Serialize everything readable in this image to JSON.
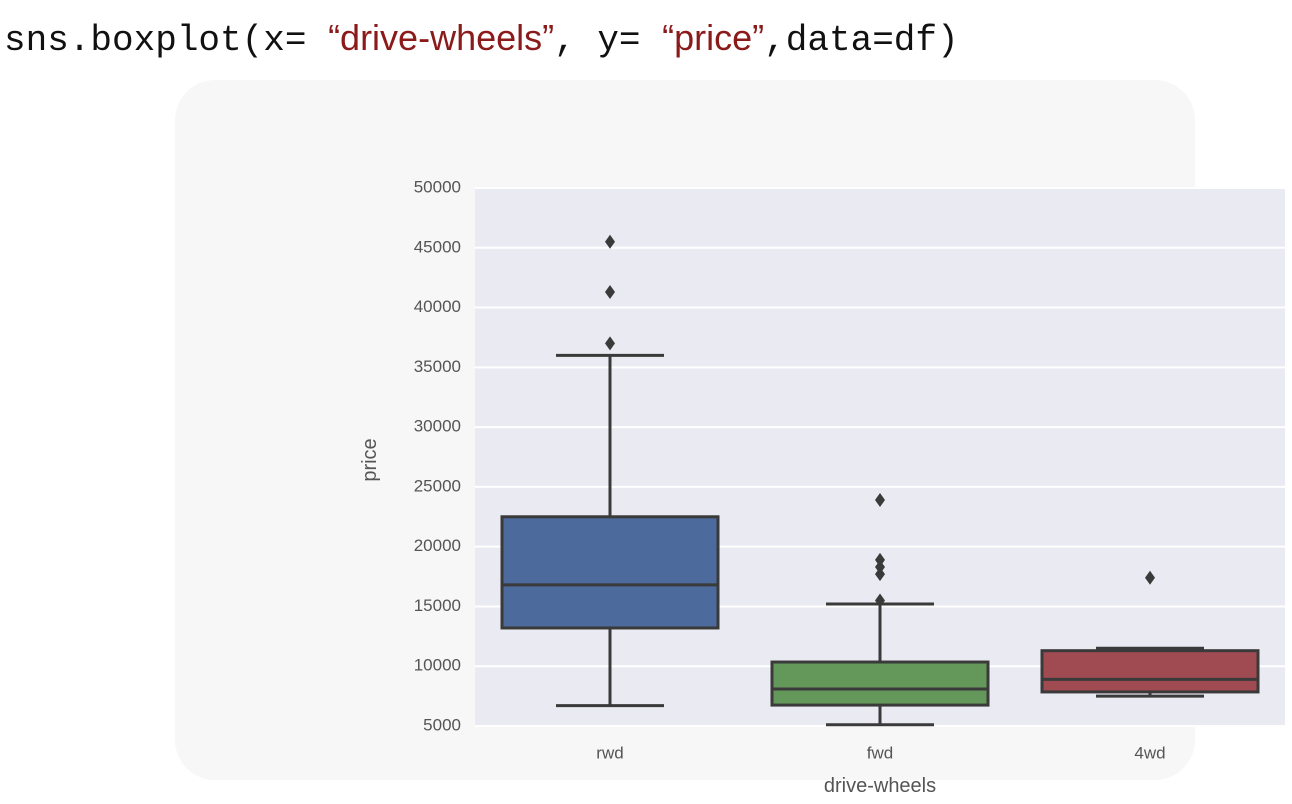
{
  "code_segments": [
    {
      "text": "sns.boxplot(x= ",
      "color": "#111111"
    },
    {
      "text": "“drive-wheels”",
      "color": "#8b1a1a"
    },
    {
      "text": ", y= ",
      "color": "#111111"
    },
    {
      "text": "“price”",
      "color": "#8b1a1a"
    },
    {
      "text": ",data=df)",
      "color": "#111111"
    }
  ],
  "chart_data": {
    "type": "box",
    "x_label": "drive-wheels",
    "y_label": "price",
    "categories": [
      "rwd",
      "fwd",
      "4wd"
    ],
    "colors": [
      "#4c6a9c",
      "#64985a",
      "#a04a52"
    ],
    "boxes": [
      {
        "low": 6700,
        "q1": 13200,
        "median": 16800,
        "q3": 22500,
        "high": 36000,
        "outliers": [
          37000,
          41300,
          45500
        ]
      },
      {
        "low": 5100,
        "q1": 6750,
        "median": 8100,
        "q3": 10350,
        "high": 15200,
        "outliers": [
          15500,
          17700,
          18300,
          18900,
          23900
        ]
      },
      {
        "low": 7500,
        "q1": 7850,
        "median": 8900,
        "q3": 11300,
        "high": 11500,
        "outliers": [
          17400
        ]
      }
    ],
    "ylim": [
      5000,
      50000
    ],
    "yticks": [
      5000,
      10000,
      15000,
      20000,
      25000,
      30000,
      35000,
      40000,
      45000,
      50000
    ],
    "grid": true
  }
}
